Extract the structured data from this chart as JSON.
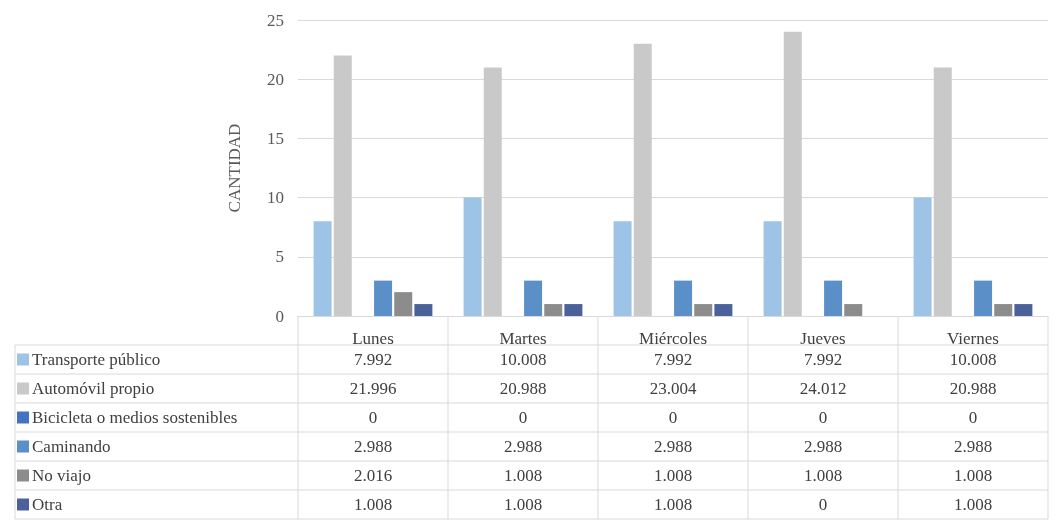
{
  "chart_data": {
    "type": "bar",
    "ylabel": "CANTIDAD",
    "categories": [
      "Lunes",
      "Martes",
      "Miércoles",
      "Jueves",
      "Viernes"
    ],
    "series": [
      {
        "name": "Transporte público",
        "color": "#9dc3e6",
        "values": [
          7.992,
          10.008,
          7.992,
          7.992,
          10.008
        ]
      },
      {
        "name": "Automóvil propio",
        "color": "#c9c9c9",
        "values": [
          21.996,
          20.988,
          23.004,
          24.012,
          20.988
        ]
      },
      {
        "name": "Bicicleta o medios sostenibles",
        "color": "#4472c4",
        "values": [
          0,
          0,
          0,
          0,
          0
        ]
      },
      {
        "name": "Caminando",
        "color": "#5b8fc7",
        "values": [
          2.988,
          2.988,
          2.988,
          2.988,
          2.988
        ]
      },
      {
        "name": "No viajo",
        "color": "#8c8c8c",
        "values": [
          2.016,
          1.008,
          1.008,
          1.008,
          1.008
        ]
      },
      {
        "name": "Otra",
        "color": "#4a6199",
        "values": [
          1.008,
          1.008,
          1.008,
          0,
          1.008
        ]
      }
    ],
    "ylim": [
      0,
      25
    ],
    "yticks": [
      0,
      5,
      10,
      15,
      20,
      25
    ],
    "grid": "y",
    "legend": "bottom left",
    "data_labels": true
  }
}
